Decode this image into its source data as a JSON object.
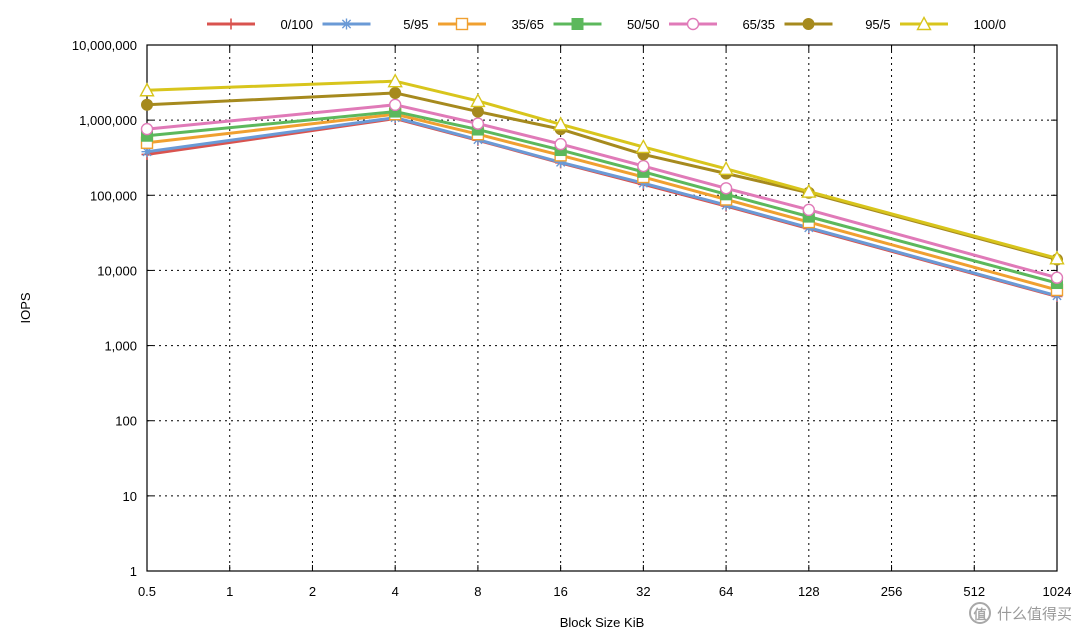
{
  "chart_data": {
    "type": "line",
    "xlabel": "Block Size KiB",
    "ylabel": "IOPS",
    "y_scale": "log",
    "ylim": [
      1,
      10000000
    ],
    "y_ticks": [
      "1",
      "10",
      "100",
      "1,000",
      "10,000",
      "100,000",
      "1,000,000",
      "10,000,000"
    ],
    "categories": [
      "0.5",
      "1",
      "2",
      "4",
      "8",
      "16",
      "32",
      "64",
      "128",
      "256",
      "512",
      "1024"
    ],
    "grid": true,
    "legend_position": "top",
    "series": [
      {
        "name": "0/100",
        "color": "#d9534f",
        "marker": "plus",
        "x": [
          "0.5",
          "4",
          "8",
          "16",
          "32",
          "64",
          "128",
          "1024"
        ],
        "values": [
          350000,
          1050000,
          540000,
          270000,
          140000,
          72000,
          36000,
          4500
        ]
      },
      {
        "name": "5/95",
        "color": "#6a9ad6",
        "marker": "star",
        "x": [
          "0.5",
          "4",
          "8",
          "16",
          "32",
          "64",
          "128",
          "1024"
        ],
        "values": [
          380000,
          1080000,
          550000,
          275000,
          145000,
          74000,
          37000,
          4600
        ]
      },
      {
        "name": "35/65",
        "color": "#f0a030",
        "marker": "square-open",
        "x": [
          "0.5",
          "4",
          "8",
          "16",
          "32",
          "64",
          "128",
          "1024"
        ],
        "values": [
          500000,
          1200000,
          650000,
          340000,
          175000,
          88000,
          44000,
          5500
        ]
      },
      {
        "name": "50/50",
        "color": "#5cb85c",
        "marker": "square-filled",
        "x": [
          "0.5",
          "4",
          "8",
          "16",
          "32",
          "64",
          "128",
          "1024"
        ],
        "values": [
          620000,
          1300000,
          750000,
          400000,
          205000,
          103000,
          52000,
          6800
        ]
      },
      {
        "name": "65/35",
        "color": "#e07ab8",
        "marker": "circle-open",
        "x": [
          "0.5",
          "4",
          "8",
          "16",
          "32",
          "64",
          "128",
          "1024"
        ],
        "values": [
          760000,
          1600000,
          900000,
          480000,
          245000,
          124000,
          64000,
          8000
        ]
      },
      {
        "name": "95/5",
        "color": "#a68a1e",
        "marker": "circle-filled",
        "x": [
          "0.5",
          "4",
          "8",
          "16",
          "32",
          "64",
          "128",
          "1024"
        ],
        "values": [
          1600000,
          2300000,
          1300000,
          760000,
          350000,
          195000,
          108000,
          14000
        ]
      },
      {
        "name": "100/0",
        "color": "#d8c51c",
        "marker": "triangle-open",
        "x": [
          "0.5",
          "4",
          "8",
          "16",
          "32",
          "64",
          "128",
          "1024"
        ],
        "values": [
          2500000,
          3300000,
          1800000,
          880000,
          440000,
          225000,
          112000,
          14500
        ]
      }
    ]
  },
  "watermark": {
    "text": "什么值得买",
    "icon_text": "值"
  }
}
